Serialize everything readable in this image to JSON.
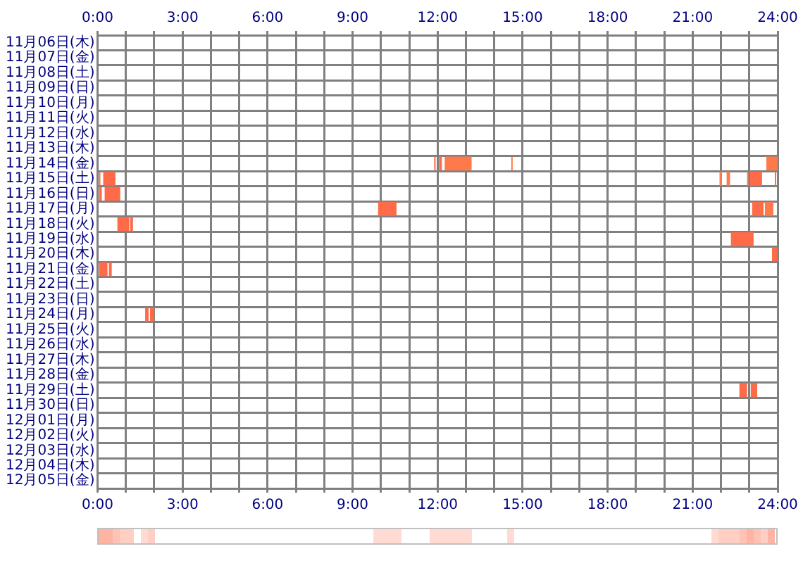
{
  "chart_data": {
    "type": "bar",
    "orientation": "horizontal",
    "grid": true,
    "categories": [
      "11月06日(木)",
      "11月07日(金)",
      "11月08日(土)",
      "11月09日(日)",
      "11月10日(月)",
      "11月11日(火)",
      "11月12日(水)",
      "11月13日(木)",
      "11月14日(金)",
      "11月15日(土)",
      "11月16日(日)",
      "11月17日(月)",
      "11月18日(火)",
      "11月19日(水)",
      "11月20日(木)",
      "11月21日(金)",
      "11月22日(土)",
      "11月23日(日)",
      "11月24日(月)",
      "11月25日(火)",
      "11月26日(水)",
      "11月27日(木)",
      "11月28日(金)",
      "11月29日(土)",
      "11月30日(日)",
      "12月01日(月)",
      "12月02日(火)",
      "12月03日(水)",
      "12月04日(木)",
      "12月05日(金)"
    ],
    "xlim": [
      0,
      24
    ],
    "xticks": [
      {
        "value": 0,
        "label": "0:00"
      },
      {
        "value": 1,
        "label": null
      },
      {
        "value": 2,
        "label": null
      },
      {
        "value": 3,
        "label": "3:00"
      },
      {
        "value": 4,
        "label": null
      },
      {
        "value": 5,
        "label": null
      },
      {
        "value": 6,
        "label": "6:00"
      },
      {
        "value": 7,
        "label": null
      },
      {
        "value": 8,
        "label": null
      },
      {
        "value": 9,
        "label": "9:00"
      },
      {
        "value": 10,
        "label": null
      },
      {
        "value": 11,
        "label": null
      },
      {
        "value": 12,
        "label": "12:00"
      },
      {
        "value": 13,
        "label": null
      },
      {
        "value": 14,
        "label": null
      },
      {
        "value": 15,
        "label": "15:00"
      },
      {
        "value": 16,
        "label": null
      },
      {
        "value": 17,
        "label": null
      },
      {
        "value": 18,
        "label": "18:00"
      },
      {
        "value": 19,
        "label": null
      },
      {
        "value": 20,
        "label": null
      },
      {
        "value": 21,
        "label": "21:00"
      },
      {
        "value": 22,
        "label": null
      },
      {
        "value": 23,
        "label": null
      },
      {
        "value": 24,
        "label": "24:00"
      }
    ],
    "x2lim": [
      0,
      24
    ],
    "x2ticks": [
      {
        "value": 0,
        "label": "0:00"
      },
      {
        "value": 1,
        "label": null
      },
      {
        "value": 2,
        "label": null
      },
      {
        "value": 3,
        "label": "3:00"
      },
      {
        "value": 4,
        "label": null
      },
      {
        "value": 5,
        "label": null
      },
      {
        "value": 6,
        "label": "6:00"
      },
      {
        "value": 7,
        "label": null
      },
      {
        "value": 8,
        "label": null
      },
      {
        "value": 9,
        "label": "9:00"
      },
      {
        "value": 10,
        "label": null
      },
      {
        "value": 11,
        "label": null
      },
      {
        "value": 12,
        "label": "12:00"
      },
      {
        "value": 13,
        "label": null
      },
      {
        "value": 14,
        "label": null
      },
      {
        "value": 15,
        "label": "15:00"
      },
      {
        "value": 16,
        "label": null
      },
      {
        "value": 17,
        "label": null
      },
      {
        "value": 18,
        "label": "18:00"
      },
      {
        "value": 19,
        "label": null
      },
      {
        "value": 20,
        "label": null
      },
      {
        "value": 21,
        "label": "21:00"
      },
      {
        "value": 22,
        "label": null
      },
      {
        "value": 23,
        "label": null
      },
      {
        "value": 24,
        "label": "24:00"
      }
    ],
    "series": [
      {
        "color": "#ff6a48",
        "base": [
          null,
          null,
          null,
          null,
          null,
          null,
          null,
          null,
          11.88,
          0.05,
          0.05,
          9.9,
          0.7,
          22.35,
          23.8,
          0.05,
          null,
          null,
          1.68,
          null,
          null,
          null,
          null,
          22.65,
          null,
          null,
          null,
          null,
          null,
          null
        ],
        "values": [
          null,
          null,
          null,
          null,
          null,
          null,
          null,
          null,
          0.05,
          0.05,
          0.1,
          0.65,
          0.42,
          0.8,
          0.2,
          0.3,
          null,
          null,
          0.12,
          null,
          null,
          null,
          null,
          0.27,
          null,
          null,
          null,
          null,
          null,
          null
        ]
      },
      {
        "color": "#ff6a48",
        "base": [
          null,
          null,
          null,
          null,
          null,
          null,
          null,
          null,
          12.05,
          0.2,
          0.25,
          23.1,
          1.15,
          null,
          null,
          0.4,
          null,
          null,
          1.85,
          null,
          null,
          null,
          null,
          23.05,
          null,
          null,
          null,
          null,
          null,
          null
        ],
        "values": [
          null,
          null,
          null,
          null,
          null,
          null,
          null,
          null,
          0.1,
          0.43,
          0.55,
          0.4,
          0.1,
          null,
          null,
          0.1,
          null,
          null,
          0.15,
          null,
          null,
          null,
          null,
          0.23,
          null,
          null,
          null,
          null,
          null,
          null
        ]
      },
      {
        "color": "#ff7a4a",
        "base": [
          null,
          null,
          null,
          null,
          null,
          null,
          null,
          null,
          12.25,
          21.95,
          null,
          23.55,
          null,
          null,
          null,
          null,
          null,
          null,
          null,
          null,
          null,
          null,
          null,
          null,
          null,
          null,
          null,
          null,
          null,
          null
        ],
        "values": [
          null,
          null,
          null,
          null,
          null,
          null,
          null,
          null,
          0.95,
          0.08,
          null,
          0.3,
          null,
          null,
          null,
          null,
          null,
          null,
          null,
          null,
          null,
          null,
          null,
          null,
          null,
          null,
          null,
          null,
          null,
          null
        ]
      },
      {
        "color": "#ff7a4a",
        "base": [
          null,
          null,
          null,
          null,
          null,
          null,
          null,
          null,
          14.6,
          22.2,
          null,
          null,
          null,
          null,
          null,
          null,
          null,
          null,
          null,
          null,
          null,
          null,
          null,
          null,
          null,
          null,
          null,
          null,
          null,
          null
        ],
        "values": [
          null,
          null,
          null,
          null,
          null,
          null,
          null,
          null,
          0.05,
          0.12,
          null,
          null,
          null,
          null,
          null,
          null,
          null,
          null,
          null,
          null,
          null,
          null,
          null,
          null,
          null,
          null,
          null,
          null,
          null,
          null
        ]
      },
      {
        "color": "#ff7a4a",
        "base": [
          null,
          null,
          null,
          null,
          null,
          null,
          null,
          null,
          23.6,
          22.92,
          null,
          null,
          null,
          null,
          null,
          null,
          null,
          null,
          null,
          null,
          null,
          null,
          null,
          null,
          null,
          null,
          null,
          null,
          null,
          null
        ],
        "values": [
          null,
          null,
          null,
          null,
          null,
          null,
          null,
          null,
          0.4,
          0.05,
          null,
          null,
          null,
          null,
          null,
          null,
          null,
          null,
          null,
          null,
          null,
          null,
          null,
          null,
          null,
          null,
          null,
          null,
          null,
          null
        ]
      },
      {
        "color": "#ff6a48",
        "base": [
          null,
          null,
          null,
          null,
          null,
          null,
          null,
          null,
          null,
          23.03,
          null,
          null,
          null,
          null,
          null,
          null,
          null,
          null,
          null,
          null,
          null,
          null,
          null,
          null,
          null,
          null,
          null,
          null,
          null,
          null
        ],
        "values": [
          null,
          null,
          null,
          null,
          null,
          null,
          null,
          null,
          null,
          0.42,
          null,
          null,
          null,
          null,
          null,
          null,
          null,
          null,
          null,
          null,
          null,
          null,
          null,
          null,
          null,
          null,
          null,
          null,
          null,
          null
        ]
      },
      {
        "color": "#ff6a48",
        "base": [
          null,
          null,
          null,
          null,
          null,
          null,
          null,
          null,
          null,
          23.9,
          null,
          null,
          null,
          null,
          null,
          null,
          null,
          null,
          null,
          null,
          null,
          null,
          null,
          null,
          null,
          null,
          null,
          null,
          null,
          null
        ],
        "values": [
          null,
          null,
          null,
          null,
          null,
          null,
          null,
          null,
          null,
          0.05,
          null,
          null,
          null,
          null,
          null,
          null,
          null,
          null,
          null,
          null,
          null,
          null,
          null,
          null,
          null,
          null,
          null,
          null,
          null,
          null
        ]
      }
    ]
  }
}
